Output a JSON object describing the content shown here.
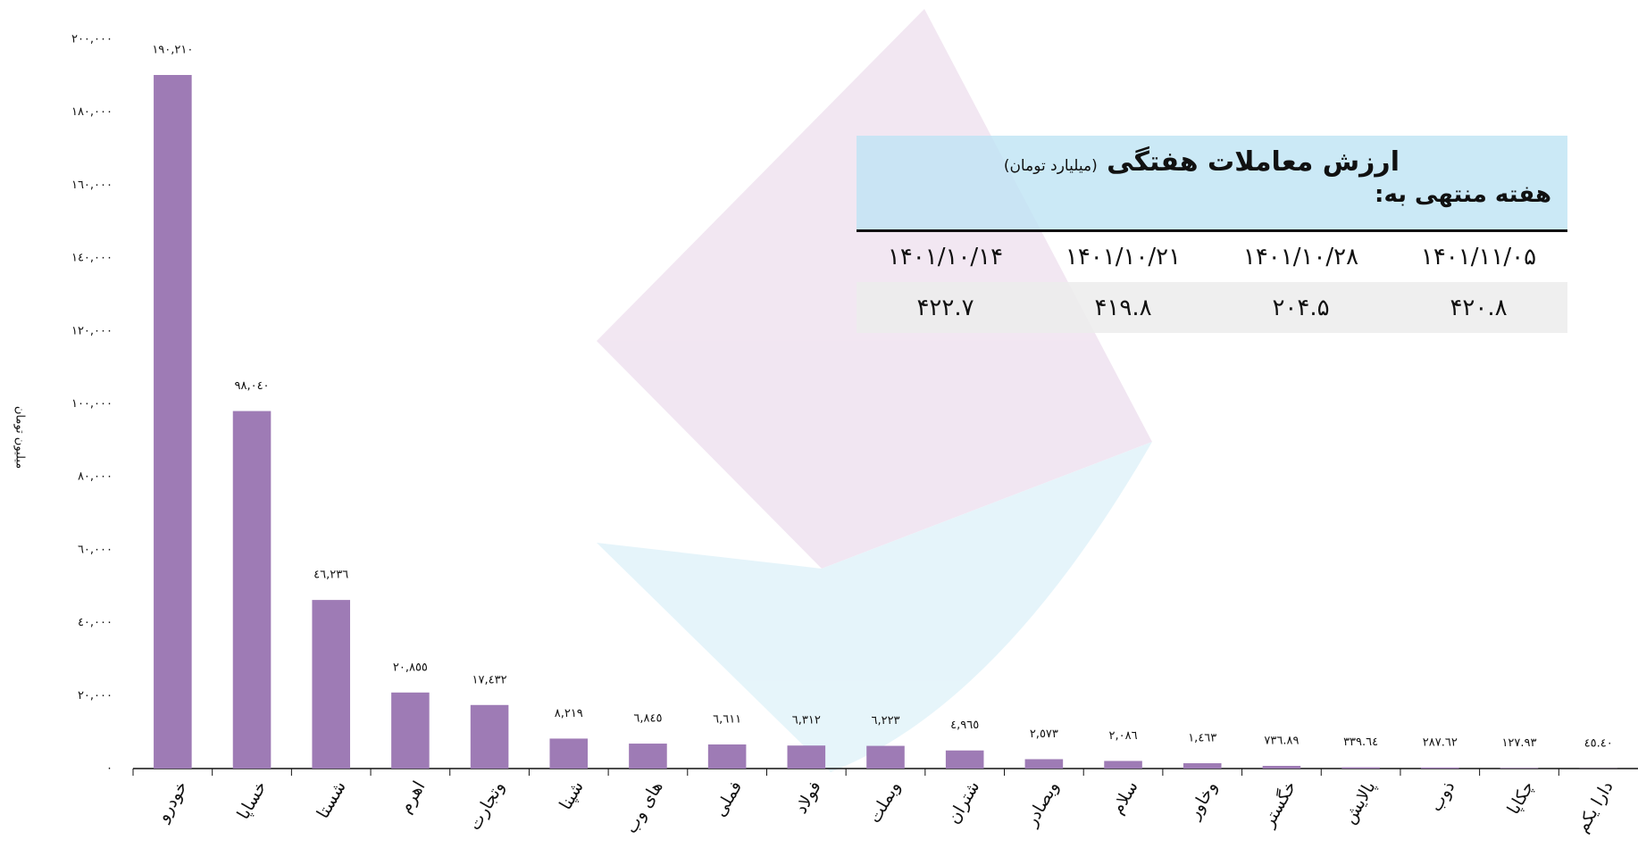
{
  "chart_data": {
    "type": "bar",
    "y_label": "میلیون تومان",
    "categories": [
      "خودرو",
      "خساپا",
      "شستا",
      "اهرم",
      "وتجارت",
      "شپنا",
      "های وب",
      "فملی",
      "فولاد",
      "وبملت",
      "شتران",
      "وبصادر",
      "سلام",
      "وخاور",
      "خگستر",
      "پالایش",
      "ذوب",
      "چکاپا",
      "دارا یکم"
    ],
    "values": [
      190210,
      98040,
      46236,
      20855,
      17432,
      8219,
      6845,
      6611,
      6312,
      6223,
      4965,
      2573,
      2086,
      1463,
      736.89,
      339.64,
      287.62,
      127.93,
      45.4
    ],
    "value_labels": [
      "١٩٠,٢١٠",
      "٩٨,٠٤٠",
      "٤٦,٢٣٦",
      "٢٠,٨٥٥",
      "١٧,٤٣٢",
      "٨,٢١٩",
      "٦,٨٤٥",
      "٦,٦١١",
      "٦,٣١٢",
      "٦,٢٢٣",
      "٤,٩٦٥",
      "٢,٥٧٣",
      "٢,٠٨٦",
      "١,٤٦٣",
      "٧٣٦.٨٩",
      "٣٣٩.٦٤",
      "٢٨٧.٦٢",
      "١٢٧.٩٣",
      "٤٥.٤٠"
    ],
    "color": "#9e7bb5",
    "ylim": [
      0,
      200000
    ],
    "yticks": [
      {
        "value": 0,
        "label": "٠"
      },
      {
        "value": 20000,
        "label": "٢٠,٠٠٠"
      },
      {
        "value": 40000,
        "label": "٤٠,٠٠٠"
      },
      {
        "value": 60000,
        "label": "٦٠,٠٠٠"
      },
      {
        "value": 80000,
        "label": "٨٠,٠٠٠"
      },
      {
        "value": 100000,
        "label": "١٠٠,٠٠٠"
      },
      {
        "value": 120000,
        "label": "١٢٠,٠٠٠"
      },
      {
        "value": 140000,
        "label": "١٤٠,٠٠٠"
      },
      {
        "value": 160000,
        "label": "١٦٠,٠٠٠"
      },
      {
        "value": 180000,
        "label": "١٨٠,٠٠٠"
      },
      {
        "value": 200000,
        "label": "٢٠٠,٠٠٠"
      }
    ],
    "grid": false
  },
  "table": {
    "title": "ارزش معاملات هفتگی",
    "unit": "(میلیارد تومان)",
    "subtitle": "هفته منتهی به:",
    "dates": [
      "۱۴۰۱/۱۱/۰۵",
      "۱۴۰۱/۱۰/۲۸",
      "۱۴۰۱/۱۰/۲۱",
      "۱۴۰۱/۱۰/۱۴"
    ],
    "values": [
      "۴۲۰.۸",
      "۲۰۴.۵",
      "۴۱۹.۸",
      "۴۲۲.۷"
    ]
  }
}
